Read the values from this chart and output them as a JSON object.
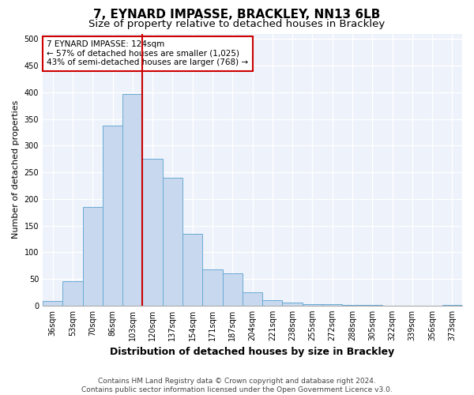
{
  "title": "7, EYNARD IMPASSE, BRACKLEY, NN13 6LB",
  "subtitle": "Size of property relative to detached houses in Brackley",
  "xlabel": "Distribution of detached houses by size in Brackley",
  "ylabel": "Number of detached properties",
  "categories": [
    "36sqm",
    "53sqm",
    "70sqm",
    "86sqm",
    "103sqm",
    "120sqm",
    "137sqm",
    "154sqm",
    "171sqm",
    "187sqm",
    "204sqm",
    "221sqm",
    "238sqm",
    "255sqm",
    "272sqm",
    "288sqm",
    "305sqm",
    "322sqm",
    "339sqm",
    "356sqm",
    "373sqm"
  ],
  "values": [
    8,
    45,
    185,
    337,
    397,
    275,
    240,
    135,
    68,
    60,
    25,
    10,
    5,
    3,
    2,
    1,
    1,
    0,
    0,
    0,
    1
  ],
  "bar_color": "#c8d9ef",
  "bar_edge_color": "#6aaad4",
  "vline_color": "#cc0000",
  "annotation_text": "7 EYNARD IMPASSE: 124sqm\n← 57% of detached houses are smaller (1,025)\n43% of semi-detached houses are larger (768) →",
  "annotation_box_color": "white",
  "annotation_box_edge_color": "#cc0000",
  "footnote": "Contains HM Land Registry data © Crown copyright and database right 2024.\nContains public sector information licensed under the Open Government Licence v3.0.",
  "ylim": [
    0,
    510
  ],
  "yticks": [
    0,
    50,
    100,
    150,
    200,
    250,
    300,
    350,
    400,
    450,
    500
  ],
  "background_color": "#edf2fb",
  "grid_color": "white",
  "title_fontsize": 11,
  "subtitle_fontsize": 9.5,
  "xlabel_fontsize": 9,
  "ylabel_fontsize": 8,
  "tick_fontsize": 7,
  "annotation_fontsize": 7.5,
  "footnote_fontsize": 6.5
}
